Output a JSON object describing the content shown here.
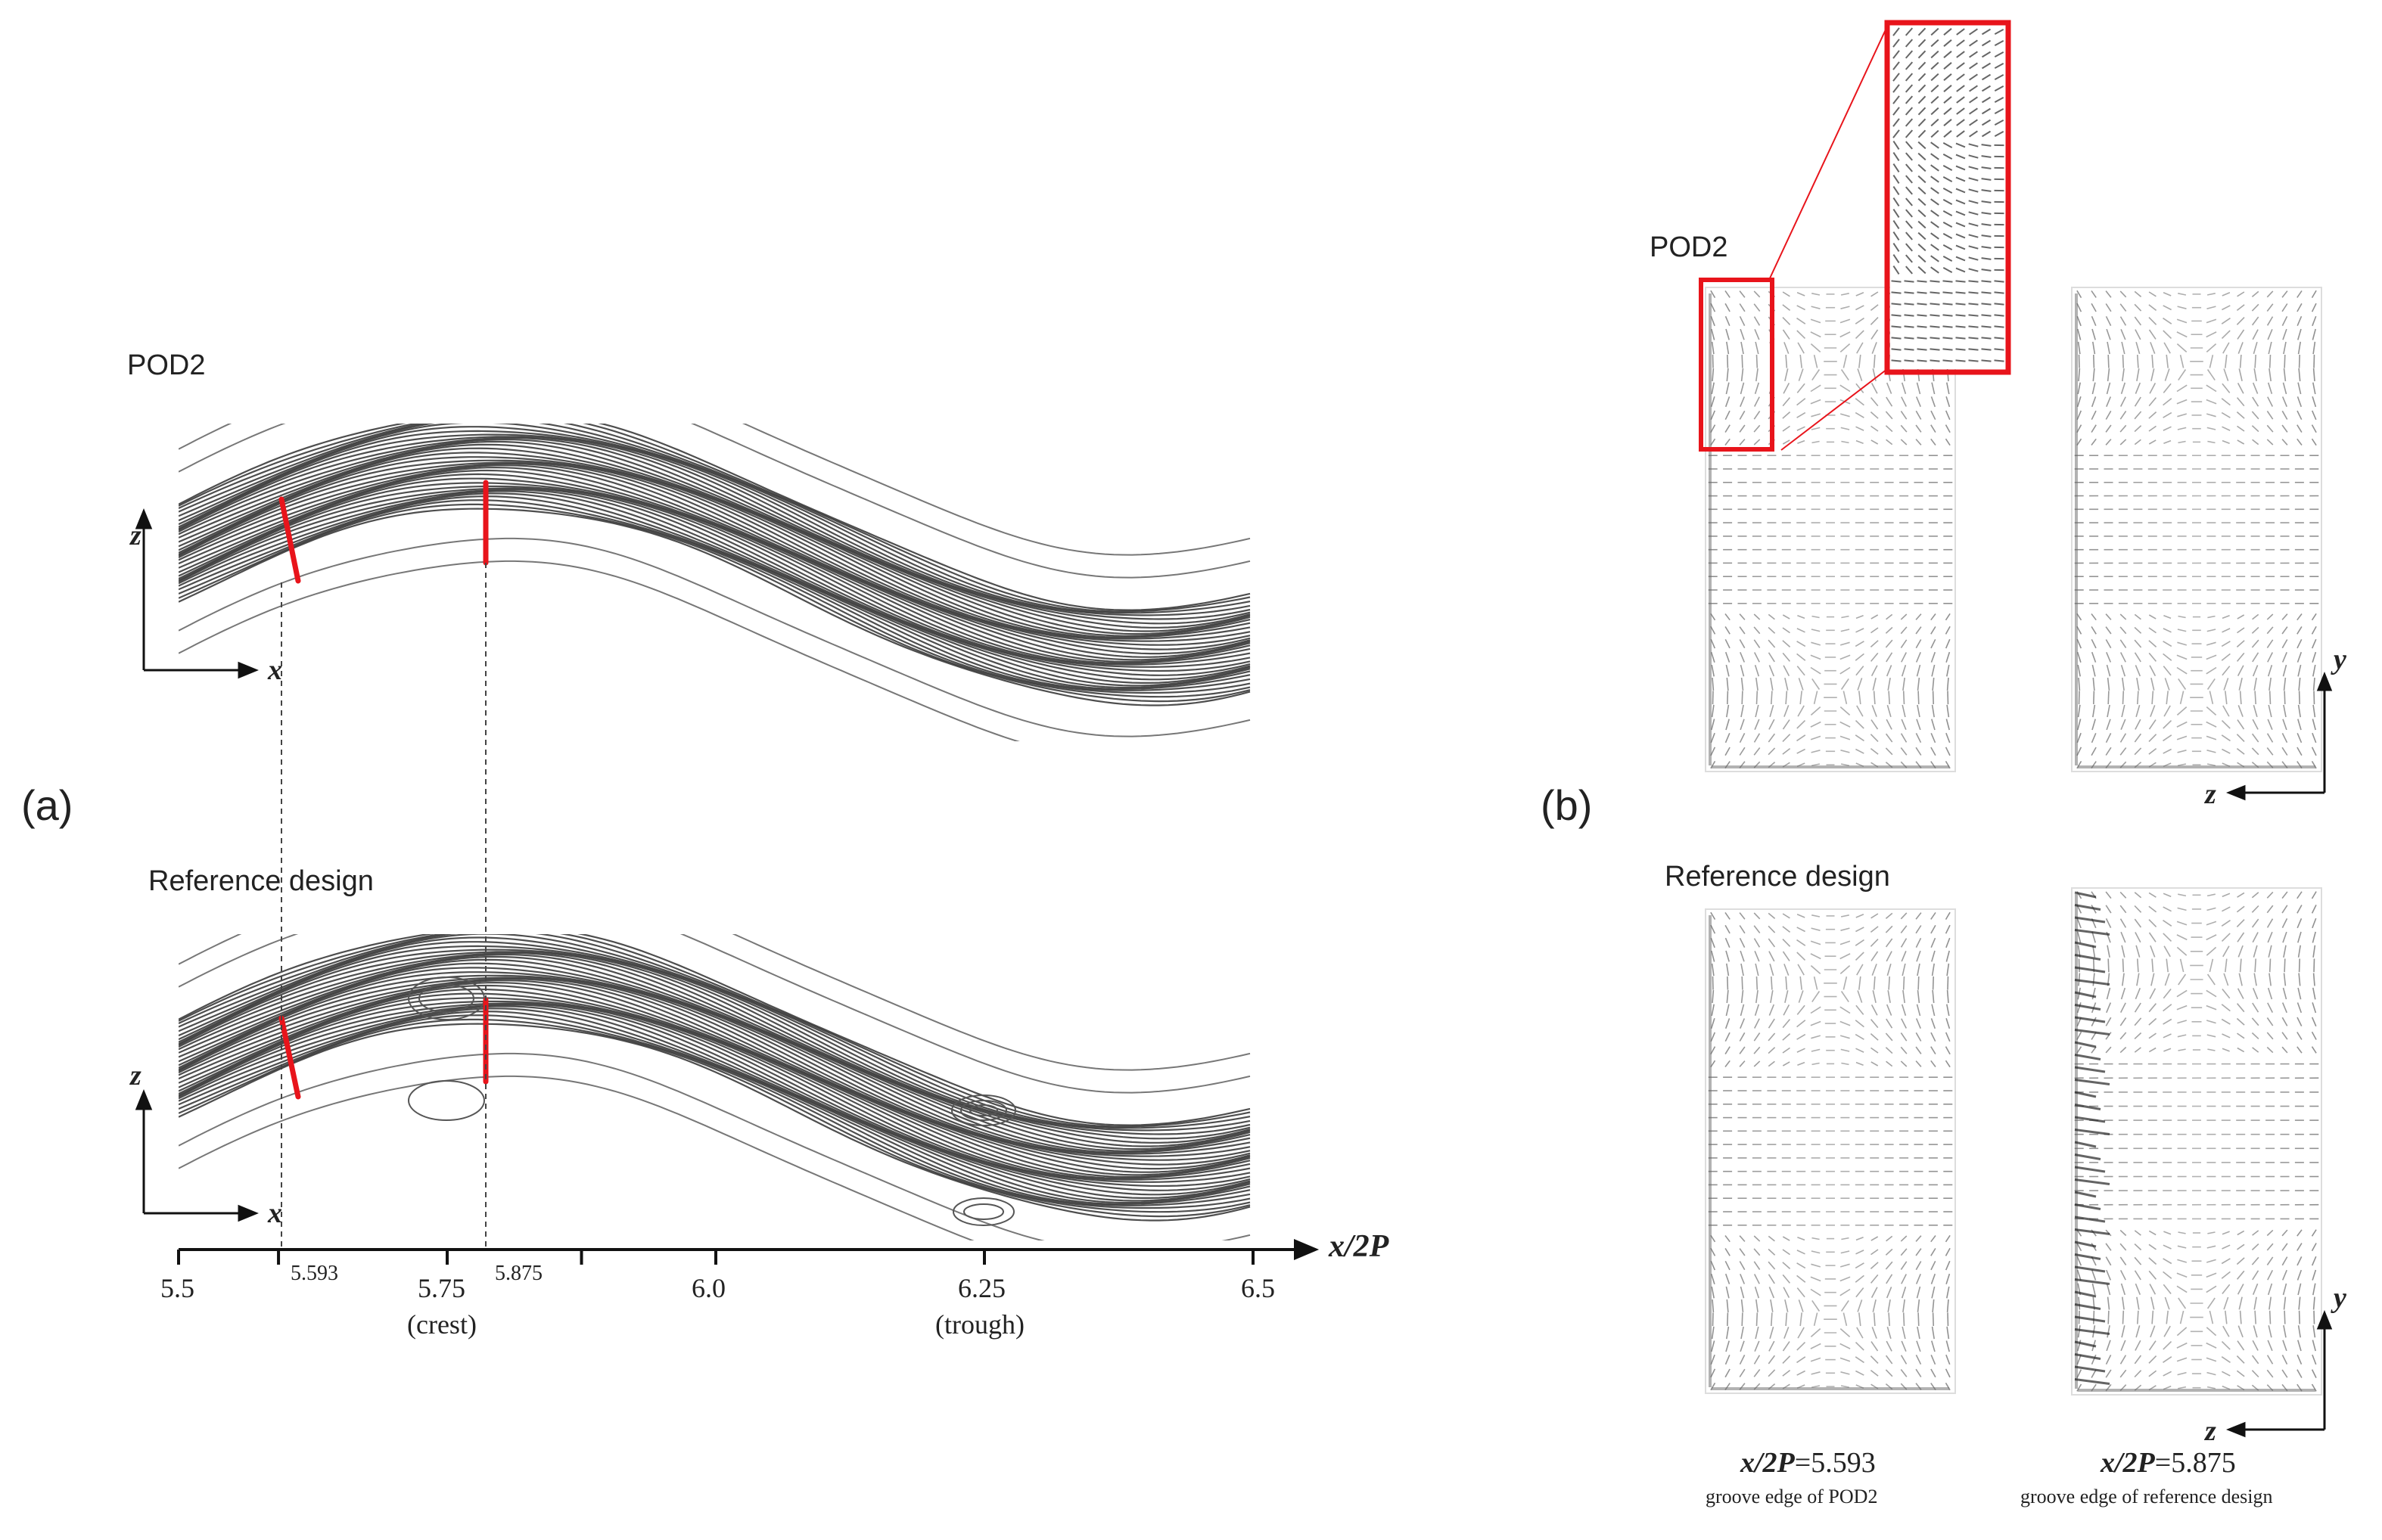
{
  "panel_a": {
    "label": "(a)",
    "top_title": "POD2",
    "bottom_title": "Reference design",
    "z_label": "z",
    "x_label": "x",
    "axis": {
      "label": "x/2P",
      "ticks": [
        "5.5",
        "5.75",
        "6.0",
        "6.25",
        "6.5"
      ],
      "tick_values": [
        5.5,
        5.75,
        6.0,
        6.25,
        6.5
      ],
      "markers": [
        "5.593",
        "5.875"
      ],
      "marker_values": [
        5.593,
        5.875
      ],
      "crest": "(crest)",
      "trough": "(trough)"
    }
  },
  "panel_b": {
    "label": "(b)",
    "top_title": "POD2",
    "bottom_title": "Reference design",
    "y_label": "y",
    "z_label": "z",
    "caption_left": {
      "var": "x/2P",
      "value": "=5.593",
      "sub": "groove edge of POD2"
    },
    "caption_right": {
      "var": "x/2P",
      "value": "=5.875",
      "sub": "groove edge of reference design"
    }
  },
  "colors": {
    "highlight": "#e8141b",
    "ink": "#222222",
    "streamline": "#333333"
  }
}
